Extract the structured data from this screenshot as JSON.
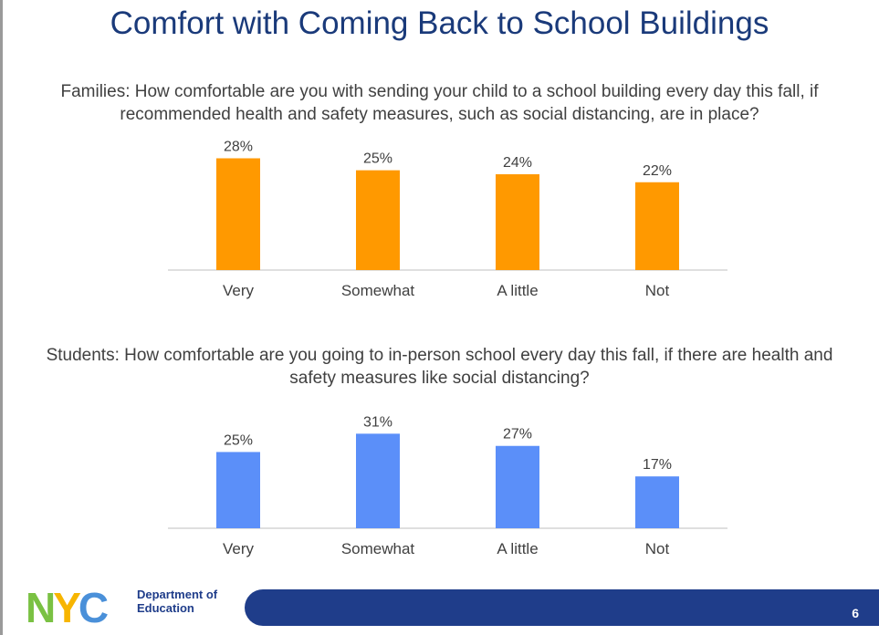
{
  "title": "Comfort with Coming Back to School Buildings",
  "families_question": "Families: How comfortable are you with sending your child to a school building every day this fall, if recommended health and safety measures, such as social distancing, are in place?",
  "students_question": "Students: How comfortable are you going to in-person school every day this fall, if there are health and safety measures like social distancing?",
  "footer": {
    "logo_text_line1": "Department of",
    "logo_text_line2": "Education",
    "logo_letters": "NYC",
    "page_number": "6"
  },
  "chart_data": [
    {
      "type": "bar",
      "categories": [
        "Very",
        "Somewhat",
        "A little",
        "Not"
      ],
      "values": [
        28,
        25,
        24,
        22
      ],
      "value_labels": [
        "28%",
        "25%",
        "24%",
        "22%"
      ],
      "ylim": [
        0,
        32
      ],
      "color": "#ff9900",
      "grid": false
    },
    {
      "type": "bar",
      "categories": [
        "Very",
        "Somewhat",
        "A little",
        "Not"
      ],
      "values": [
        25,
        31,
        27,
        17
      ],
      "value_labels": [
        "25%",
        "31%",
        "27%",
        "17%"
      ],
      "ylim": [
        0,
        35
      ],
      "color": "#5b8ff9",
      "grid": false
    }
  ]
}
